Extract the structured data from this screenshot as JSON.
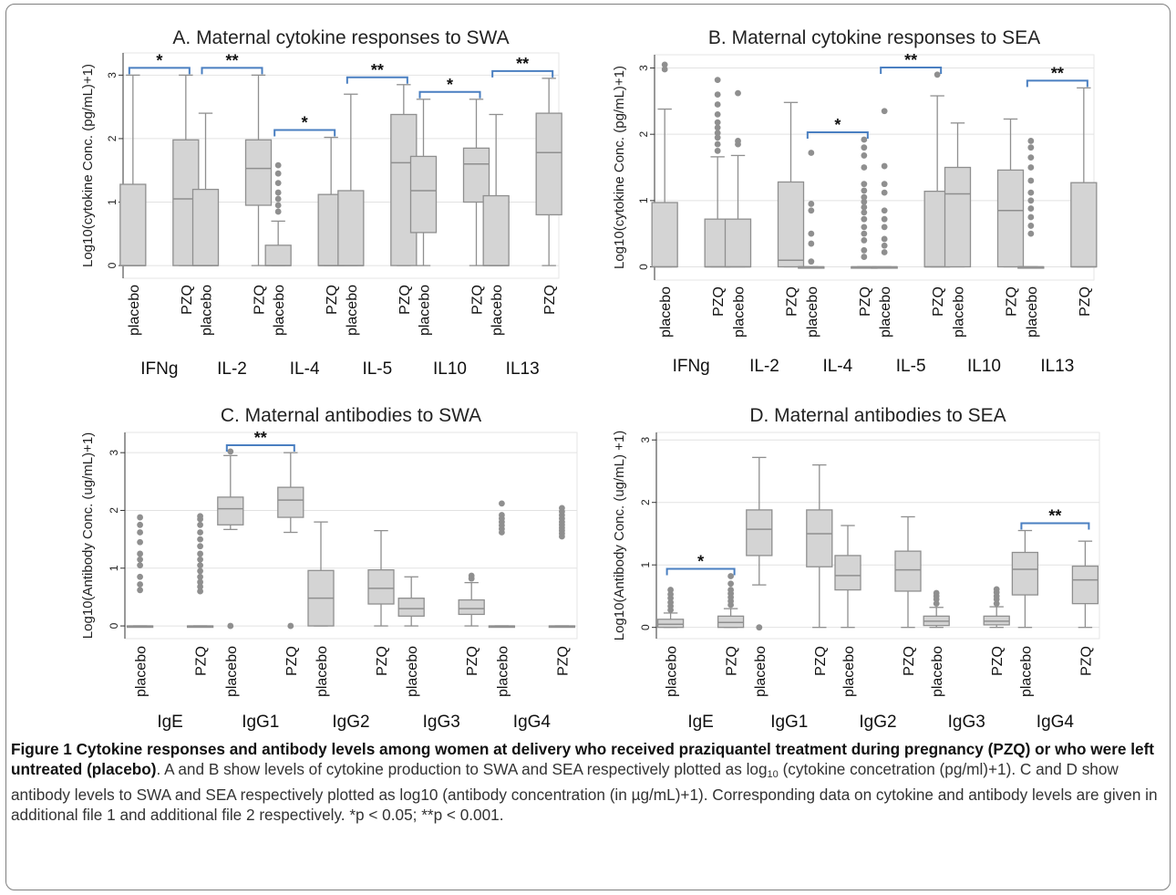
{
  "chart_data": [
    {
      "id": "A",
      "type": "box",
      "title": "A. Maternal cytokine responses to SWA",
      "ylabel": "Log10(cytokine Conc. (pg/mL)+1)",
      "ylim": [
        -0.2,
        3.35
      ],
      "yticks": [
        0,
        1,
        2,
        3
      ],
      "grid": true,
      "arms": [
        "placebo",
        "PZQ"
      ],
      "groups": [
        {
          "name": "IFNg",
          "sig": "*",
          "boxes": [
            {
              "arm": "placebo",
              "q1": 0,
              "median": 0,
              "q3": 1.28,
              "whisker_low": 0,
              "whisker_high": 3.0,
              "outliers": []
            },
            {
              "arm": "PZQ",
              "q1": 0,
              "median": 1.05,
              "q3": 1.98,
              "whisker_low": 0,
              "whisker_high": 3.0,
              "outliers": []
            }
          ]
        },
        {
          "name": "IL-2",
          "sig": "**",
          "boxes": [
            {
              "arm": "placebo",
              "q1": 0,
              "median": 0,
              "q3": 1.2,
              "whisker_low": 0,
              "whisker_high": 2.4,
              "outliers": []
            },
            {
              "arm": "PZQ",
              "q1": 0.95,
              "median": 1.53,
              "q3": 1.98,
              "whisker_low": 0,
              "whisker_high": 3.0,
              "outliers": []
            }
          ]
        },
        {
          "name": "IL-4",
          "sig": "*",
          "boxes": [
            {
              "arm": "placebo",
              "q1": 0,
              "median": 0,
              "q3": 0.32,
              "whisker_low": 0,
              "whisker_high": 0.7,
              "outliers": [
                0.85,
                0.95,
                1.05,
                1.15,
                1.3,
                1.45,
                1.58
              ]
            },
            {
              "arm": "PZQ",
              "q1": 0,
              "median": 0,
              "q3": 1.12,
              "whisker_low": 0,
              "whisker_high": 2.02,
              "outliers": []
            }
          ]
        },
        {
          "name": "IL-5",
          "sig": "**",
          "boxes": [
            {
              "arm": "placebo",
              "q1": 0,
              "median": 0,
              "q3": 1.18,
              "whisker_low": 0,
              "whisker_high": 2.7,
              "outliers": []
            },
            {
              "arm": "PZQ",
              "q1": 0,
              "median": 1.62,
              "q3": 2.38,
              "whisker_low": 0,
              "whisker_high": 2.85,
              "outliers": []
            }
          ]
        },
        {
          "name": "IL10",
          "sig": "*",
          "boxes": [
            {
              "arm": "placebo",
              "q1": 0.52,
              "median": 1.18,
              "q3": 1.72,
              "whisker_low": 0,
              "whisker_high": 2.62,
              "outliers": []
            },
            {
              "arm": "PZQ",
              "q1": 1.0,
              "median": 1.6,
              "q3": 1.85,
              "whisker_low": 0,
              "whisker_high": 2.62,
              "outliers": []
            }
          ]
        },
        {
          "name": "IL13",
          "sig": "**",
          "boxes": [
            {
              "arm": "placebo",
              "q1": 0,
              "median": 0,
              "q3": 1.1,
              "whisker_low": 0,
              "whisker_high": 2.38,
              "outliers": []
            },
            {
              "arm": "PZQ",
              "q1": 0.8,
              "median": 1.78,
              "q3": 2.4,
              "whisker_low": 0,
              "whisker_high": 2.95,
              "outliers": []
            }
          ]
        }
      ]
    },
    {
      "id": "B",
      "type": "box",
      "title": "B. Maternal cytokine responses to SEA",
      "ylabel": "Log10(cytokine Conc. (pg/mL)+1)",
      "ylim": [
        -0.2,
        3.2
      ],
      "yticks": [
        0,
        1,
        2,
        3
      ],
      "grid": true,
      "arms": [
        "placebo",
        "PZQ"
      ],
      "groups": [
        {
          "name": "IFNg",
          "sig": "",
          "boxes": [
            {
              "arm": "placebo",
              "q1": 0,
              "median": 0,
              "q3": 0.97,
              "whisker_low": 0,
              "whisker_high": 2.38,
              "outliers": [
                2.98,
                3.05
              ]
            },
            {
              "arm": "PZQ",
              "q1": 0,
              "median": 0,
              "q3": 0.72,
              "whisker_low": 0,
              "whisker_high": 1.66,
              "outliers": [
                1.75,
                1.85,
                1.95,
                2.02,
                2.1,
                2.18,
                2.3,
                2.45,
                2.6,
                2.82
              ]
            }
          ]
        },
        {
          "name": "IL-2",
          "sig": "",
          "boxes": [
            {
              "arm": "placebo",
              "q1": 0,
              "median": 0,
              "q3": 0.72,
              "whisker_low": 0,
              "whisker_high": 1.68,
              "outliers": [
                1.85,
                1.9,
                2.62
              ]
            },
            {
              "arm": "PZQ",
              "q1": 0,
              "median": 0.1,
              "q3": 1.28,
              "whisker_low": 0,
              "whisker_high": 2.48,
              "outliers": []
            }
          ]
        },
        {
          "name": "IL-4",
          "sig": "*",
          "boxes": [
            {
              "arm": "placebo",
              "q1": 0,
              "median": 0,
              "q3": 0,
              "whisker_low": 0,
              "whisker_high": 0,
              "outliers": [
                0.08,
                0.35,
                0.5,
                0.85,
                0.95,
                1.72
              ]
            },
            {
              "arm": "PZQ",
              "q1": 0,
              "median": 0,
              "q3": 0,
              "whisker_low": 0,
              "whisker_high": 0,
              "outliers": [
                0.15,
                0.25,
                0.4,
                0.5,
                0.6,
                0.72,
                0.82,
                0.9,
                0.98,
                1.05,
                1.15,
                1.25,
                1.5,
                1.68,
                1.8,
                1.92
              ]
            }
          ]
        },
        {
          "name": "IL-5",
          "sig": "**",
          "boxes": [
            {
              "arm": "placebo",
              "q1": 0,
              "median": 0,
              "q3": 0,
              "whisker_low": 0,
              "whisker_high": 0,
              "outliers": [
                0.22,
                0.32,
                0.42,
                0.6,
                0.72,
                0.85,
                1.12,
                1.25,
                1.52,
                2.35
              ]
            },
            {
              "arm": "PZQ",
              "q1": 0,
              "median": 0,
              "q3": 1.14,
              "whisker_low": 0,
              "whisker_high": 2.58,
              "outliers": [
                2.9
              ]
            }
          ]
        },
        {
          "name": "IL10",
          "sig": "",
          "boxes": [
            {
              "arm": "placebo",
              "q1": 0,
              "median": 1.1,
              "q3": 1.5,
              "whisker_low": 0,
              "whisker_high": 2.17,
              "outliers": []
            },
            {
              "arm": "PZQ",
              "q1": 0,
              "median": 0.85,
              "q3": 1.46,
              "whisker_low": 0,
              "whisker_high": 2.23,
              "outliers": []
            }
          ]
        },
        {
          "name": "IL13",
          "sig": "**",
          "boxes": [
            {
              "arm": "placebo",
              "q1": 0,
              "median": 0,
              "q3": 0,
              "whisker_low": 0,
              "whisker_high": 0,
              "outliers": [
                0.5,
                0.62,
                0.75,
                0.88,
                1.0,
                1.12,
                1.3,
                1.5,
                1.65,
                1.8,
                1.9
              ]
            },
            {
              "arm": "PZQ",
              "q1": 0,
              "median": 0,
              "q3": 1.27,
              "whisker_low": 0,
              "whisker_high": 2.7,
              "outliers": []
            }
          ]
        }
      ]
    },
    {
      "id": "C",
      "type": "box",
      "title": "C. Maternal antibodies to SWA",
      "ylabel": "Log10(Antibody Conc. (ug/mL)+1)",
      "ylim": [
        -0.22,
        3.35
      ],
      "yticks": [
        0,
        1,
        2,
        3
      ],
      "grid": true,
      "arms": [
        "placebo",
        "PZQ"
      ],
      "groups": [
        {
          "name": "IgE",
          "sig": "",
          "boxes": [
            {
              "arm": "placebo",
              "q1": 0,
              "median": 0,
              "q3": 0,
              "whisker_low": 0,
              "whisker_high": 0,
              "outliers": [
                0.62,
                0.72,
                0.85,
                1.05,
                1.15,
                1.25,
                1.45,
                1.62,
                1.75,
                1.88
              ]
            },
            {
              "arm": "PZQ",
              "q1": 0,
              "median": 0,
              "q3": 0,
              "whisker_low": 0,
              "whisker_high": 0,
              "outliers": [
                0.6,
                0.68,
                0.76,
                0.85,
                0.95,
                1.05,
                1.15,
                1.25,
                1.38,
                1.5,
                1.62,
                1.75,
                1.85,
                1.9
              ]
            }
          ]
        },
        {
          "name": "IgG1",
          "sig": "**",
          "boxes": [
            {
              "arm": "placebo",
              "q1": 1.75,
              "median": 2.03,
              "q3": 2.23,
              "whisker_low": 1.67,
              "whisker_high": 2.95,
              "outliers": [
                0,
                3.02
              ]
            },
            {
              "arm": "PZQ",
              "q1": 1.88,
              "median": 2.18,
              "q3": 2.4,
              "whisker_low": 1.62,
              "whisker_high": 3.0,
              "outliers": [
                0
              ]
            }
          ]
        },
        {
          "name": "IgG2",
          "sig": "",
          "boxes": [
            {
              "arm": "placebo",
              "q1": 0,
              "median": 0.48,
              "q3": 0.96,
              "whisker_low": 0,
              "whisker_high": 1.8,
              "outliers": []
            },
            {
              "arm": "PZQ",
              "q1": 0.38,
              "median": 0.65,
              "q3": 0.97,
              "whisker_low": 0,
              "whisker_high": 1.65,
              "outliers": []
            }
          ]
        },
        {
          "name": "IgG3",
          "sig": "",
          "boxes": [
            {
              "arm": "placebo",
              "q1": 0.17,
              "median": 0.3,
              "q3": 0.48,
              "whisker_low": 0,
              "whisker_high": 0.85,
              "outliers": []
            },
            {
              "arm": "PZQ",
              "q1": 0.2,
              "median": 0.3,
              "q3": 0.45,
              "whisker_low": 0,
              "whisker_high": 0.75,
              "outliers": [
                0.82,
                0.87
              ]
            }
          ]
        },
        {
          "name": "IgG4",
          "sig": "",
          "boxes": [
            {
              "arm": "placebo",
              "q1": 0,
              "median": 0,
              "q3": 0,
              "whisker_low": 0,
              "whisker_high": 0,
              "outliers": [
                1.62,
                1.68,
                1.74,
                1.8,
                1.86,
                1.92,
                2.12
              ]
            },
            {
              "arm": "PZQ",
              "q1": 0,
              "median": 0,
              "q3": 0,
              "whisker_low": 0,
              "whisker_high": 0,
              "outliers": [
                1.55,
                1.6,
                1.65,
                1.7,
                1.75,
                1.8,
                1.86,
                1.92,
                1.98,
                2.04
              ]
            }
          ]
        }
      ]
    },
    {
      "id": "D",
      "type": "box",
      "title": "D. Maternal antibodies to SEA",
      "ylabel": "Log10(Antibody Conc. (ug/mL) +1)",
      "ylim": [
        -0.18,
        3.12
      ],
      "yticks": [
        0,
        1,
        2,
        3
      ],
      "grid": true,
      "arms": [
        "placebo",
        "PZQ"
      ],
      "groups": [
        {
          "name": "IgE",
          "sig": "*",
          "boxes": [
            {
              "arm": "placebo",
              "q1": 0,
              "median": 0.05,
              "q3": 0.13,
              "whisker_low": 0,
              "whisker_high": 0.23,
              "outliers": [
                0.28,
                0.34,
                0.4,
                0.47,
                0.53,
                0.6
              ]
            },
            {
              "arm": "PZQ",
              "q1": 0,
              "median": 0.08,
              "q3": 0.18,
              "whisker_low": 0,
              "whisker_high": 0.3,
              "outliers": [
                0.36,
                0.42,
                0.48,
                0.54,
                0.6,
                0.7,
                0.82
              ]
            }
          ]
        },
        {
          "name": "IgG1",
          "sig": "",
          "boxes": [
            {
              "arm": "placebo",
              "q1": 1.15,
              "median": 1.57,
              "q3": 1.88,
              "whisker_low": 0.68,
              "whisker_high": 2.72,
              "outliers": [
                0
              ]
            },
            {
              "arm": "PZQ",
              "q1": 0.97,
              "median": 1.5,
              "q3": 1.88,
              "whisker_low": 0,
              "whisker_high": 2.6,
              "outliers": []
            }
          ]
        },
        {
          "name": "IgG2",
          "sig": "",
          "boxes": [
            {
              "arm": "placebo",
              "q1": 0.6,
              "median": 0.83,
              "q3": 1.15,
              "whisker_low": 0,
              "whisker_high": 1.63,
              "outliers": []
            },
            {
              "arm": "PZQ",
              "q1": 0.58,
              "median": 0.92,
              "q3": 1.22,
              "whisker_low": 0,
              "whisker_high": 1.77,
              "outliers": []
            }
          ]
        },
        {
          "name": "IgG3",
          "sig": "",
          "boxes": [
            {
              "arm": "placebo",
              "q1": 0.03,
              "median": 0.1,
              "q3": 0.18,
              "whisker_low": 0,
              "whisker_high": 0.32,
              "outliers": [
                0.38,
                0.45,
                0.5,
                0.55
              ]
            },
            {
              "arm": "PZQ",
              "q1": 0.04,
              "median": 0.1,
              "q3": 0.18,
              "whisker_low": 0,
              "whisker_high": 0.33,
              "outliers": [
                0.38,
                0.45,
                0.5,
                0.56,
                0.61
              ]
            }
          ]
        },
        {
          "name": "IgG4",
          "sig": "**",
          "boxes": [
            {
              "arm": "placebo",
              "q1": 0.52,
              "median": 0.93,
              "q3": 1.2,
              "whisker_low": 0,
              "whisker_high": 1.55,
              "outliers": []
            },
            {
              "arm": "PZQ",
              "q1": 0.38,
              "median": 0.76,
              "q3": 0.98,
              "whisker_low": 0,
              "whisker_high": 1.38,
              "outliers": []
            }
          ]
        }
      ]
    }
  ],
  "caption": {
    "bold": "Figure 1 Cytokine responses and antibody levels among women at delivery who received praziquantel treatment during pregnancy (PZQ) or who were left untreated (placebo)",
    "text_pre": ". A and B show levels of cytokine production to SWA and SEA respectively plotted as log",
    "log_sub": "10",
    "text_post": " (cytokine concetration (pg/ml)+1). C and D show antibody levels to SWA and SEA respectively plotted as log10 (antibody concentration (in µg/mL)+1). Corresponding data on cytokine and antibody levels are given in additional file 1 and additional file 2 respectively. *p < 0.05; **p < 0.001."
  },
  "colors": {
    "box_fill": "#d4d4d4",
    "box_stroke": "#8f8f8f",
    "outlier": "#8f8f8f",
    "grid": "#e2e2e2",
    "bracket": "#4a7fc1",
    "axis": "#333333"
  }
}
